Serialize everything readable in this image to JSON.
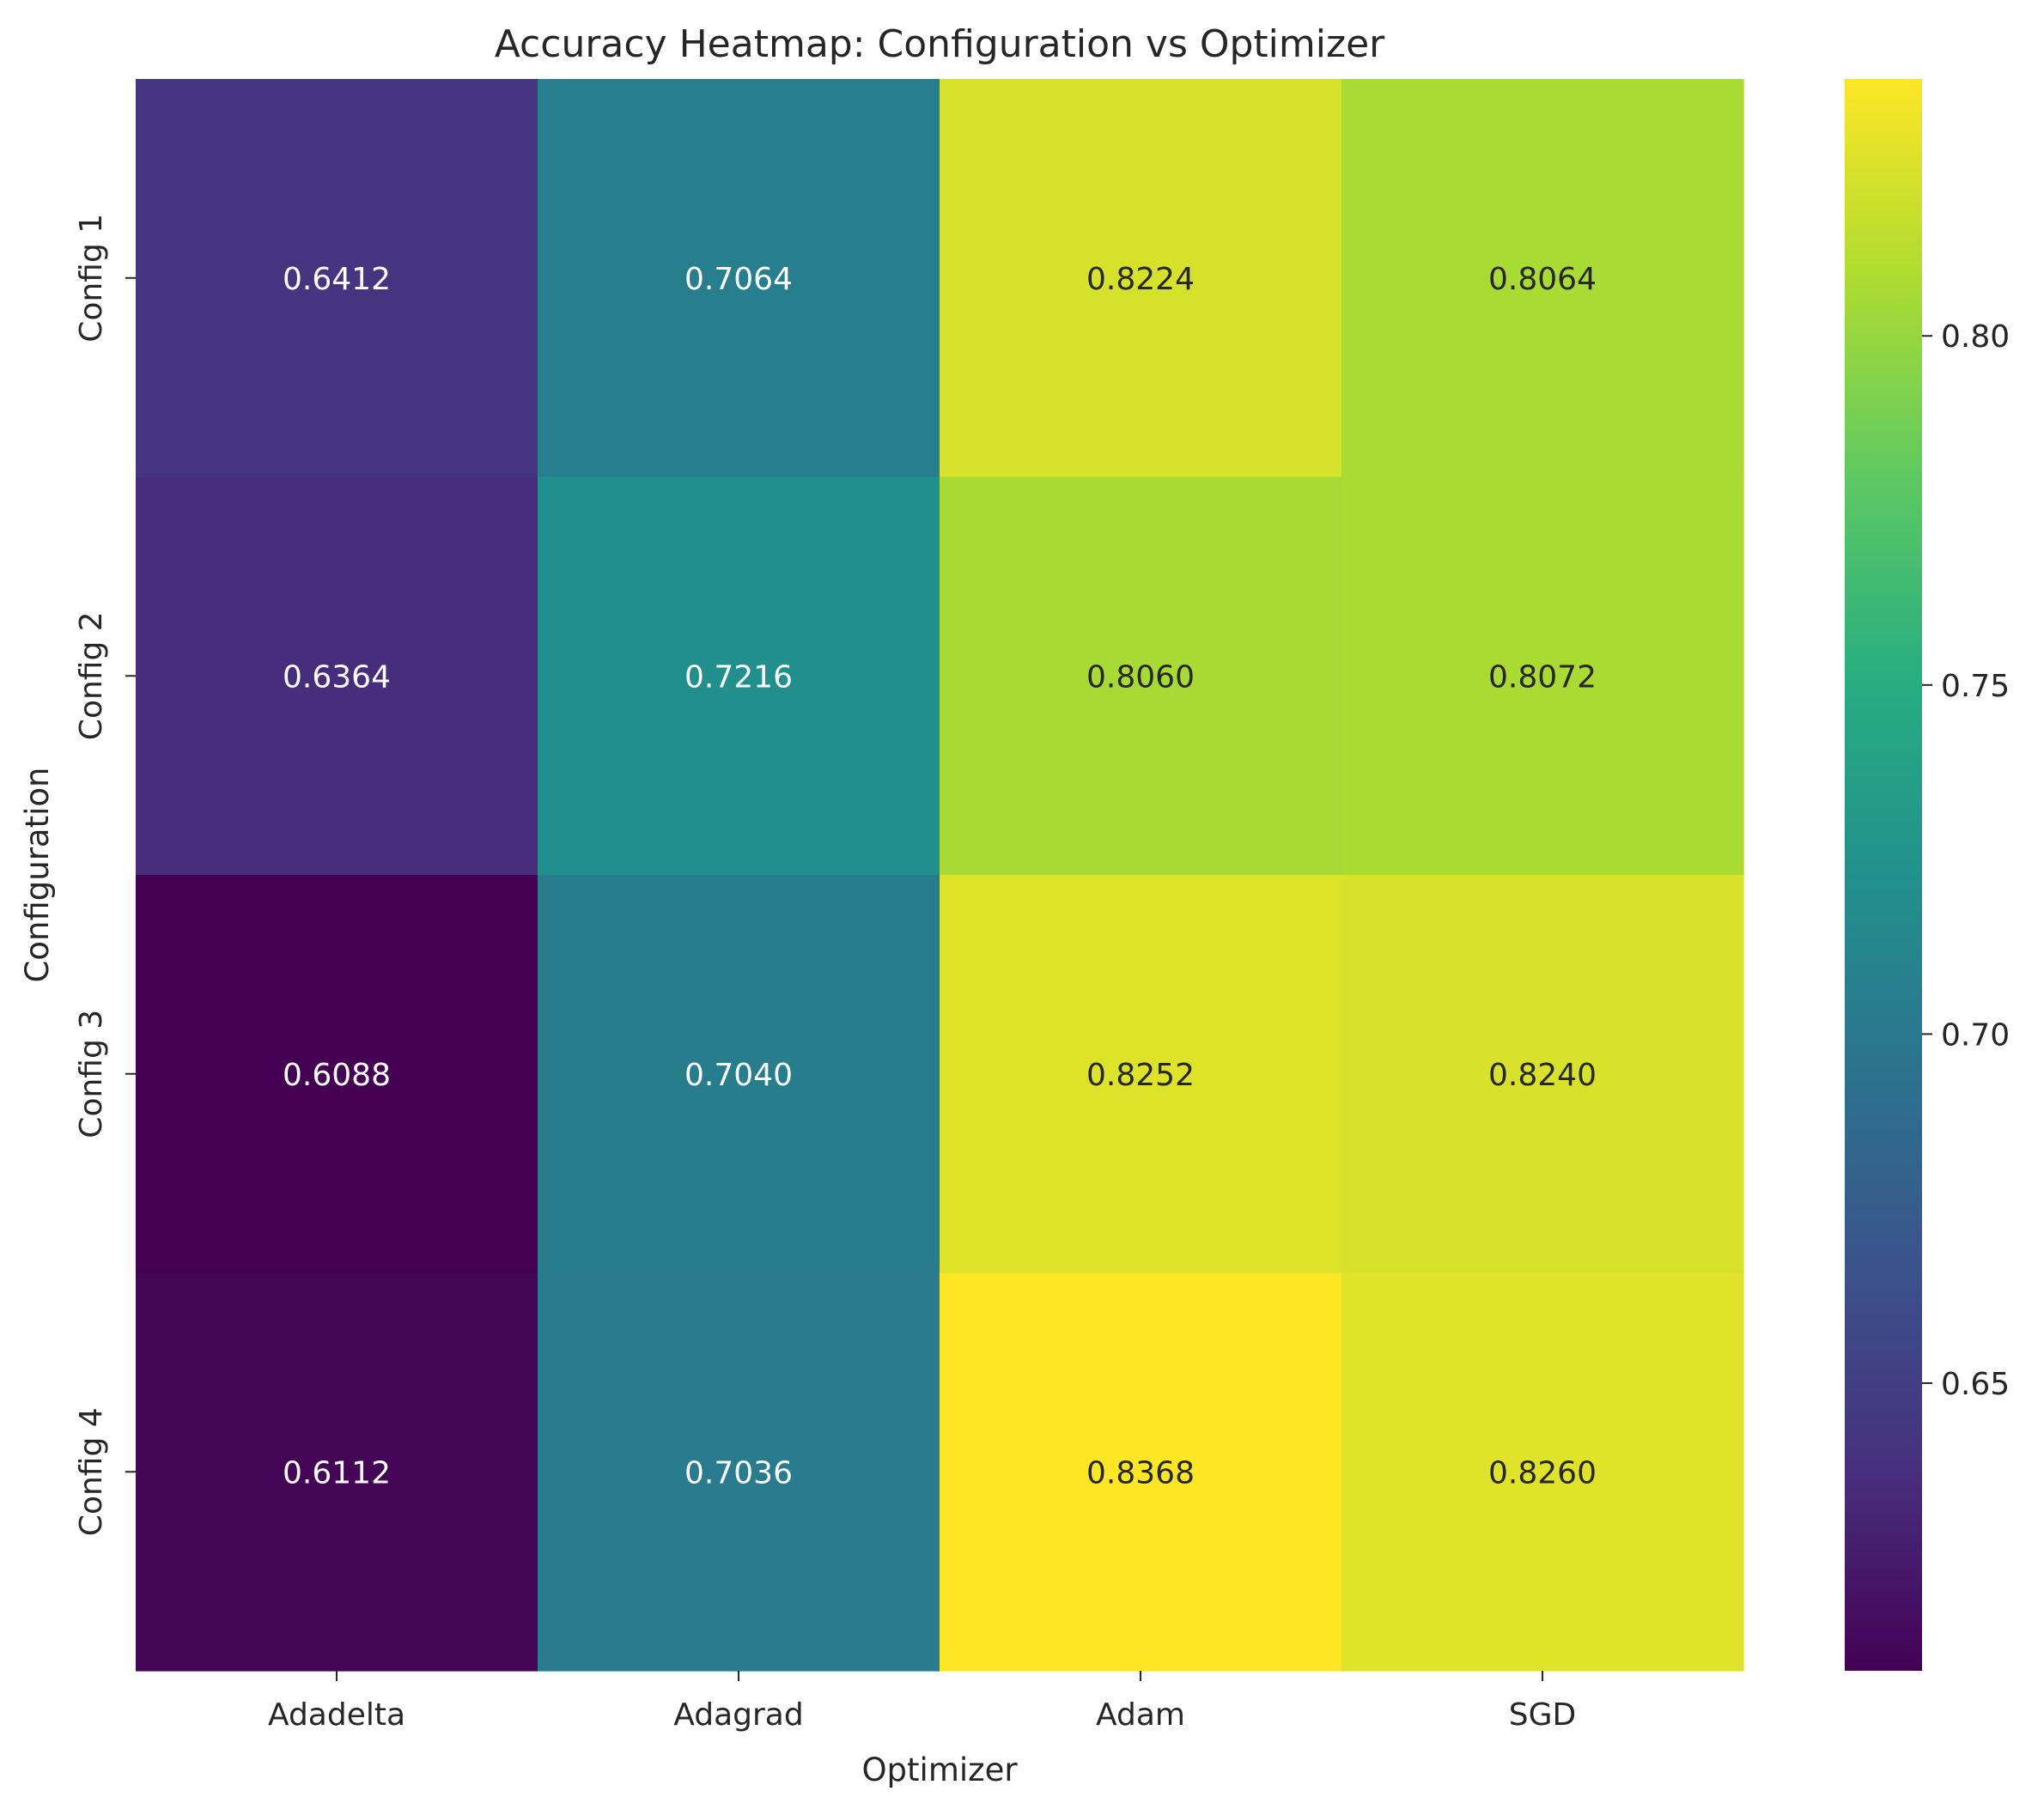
{
  "chart_data": {
    "type": "heatmap",
    "title": "Accuracy Heatmap: Configuration vs Optimizer",
    "xlabel": "Optimizer",
    "ylabel": "Configuration",
    "x_categories": [
      "Adadelta",
      "Adagrad",
      "Adam",
      "SGD"
    ],
    "y_categories": [
      "Config 1",
      "Config 2",
      "Config 3",
      "Config 4"
    ],
    "values": [
      [
        0.6412,
        0.7064,
        0.8224,
        0.8064
      ],
      [
        0.6364,
        0.7216,
        0.806,
        0.8072
      ],
      [
        0.6088,
        0.704,
        0.8252,
        0.824
      ],
      [
        0.6112,
        0.7036,
        0.8368,
        0.826
      ]
    ],
    "value_labels": [
      [
        "0.6412",
        "0.7064",
        "0.8224",
        "0.8064"
      ],
      [
        "0.6364",
        "0.7216",
        "0.8060",
        "0.8072"
      ],
      [
        "0.6088",
        "0.7040",
        "0.8252",
        "0.8240"
      ],
      [
        "0.6112",
        "0.7036",
        "0.8368",
        "0.8260"
      ]
    ],
    "colormap": "viridis",
    "color_range": [
      0.6088,
      0.8368
    ],
    "colorbar": {
      "ticks": [
        0.65,
        0.7,
        0.75,
        0.8
      ],
      "tick_labels": [
        "0.65",
        "0.70",
        "0.75",
        "0.80"
      ]
    },
    "annotation_colors": {
      "light": "#ffffff",
      "dark": "#262626"
    }
  }
}
